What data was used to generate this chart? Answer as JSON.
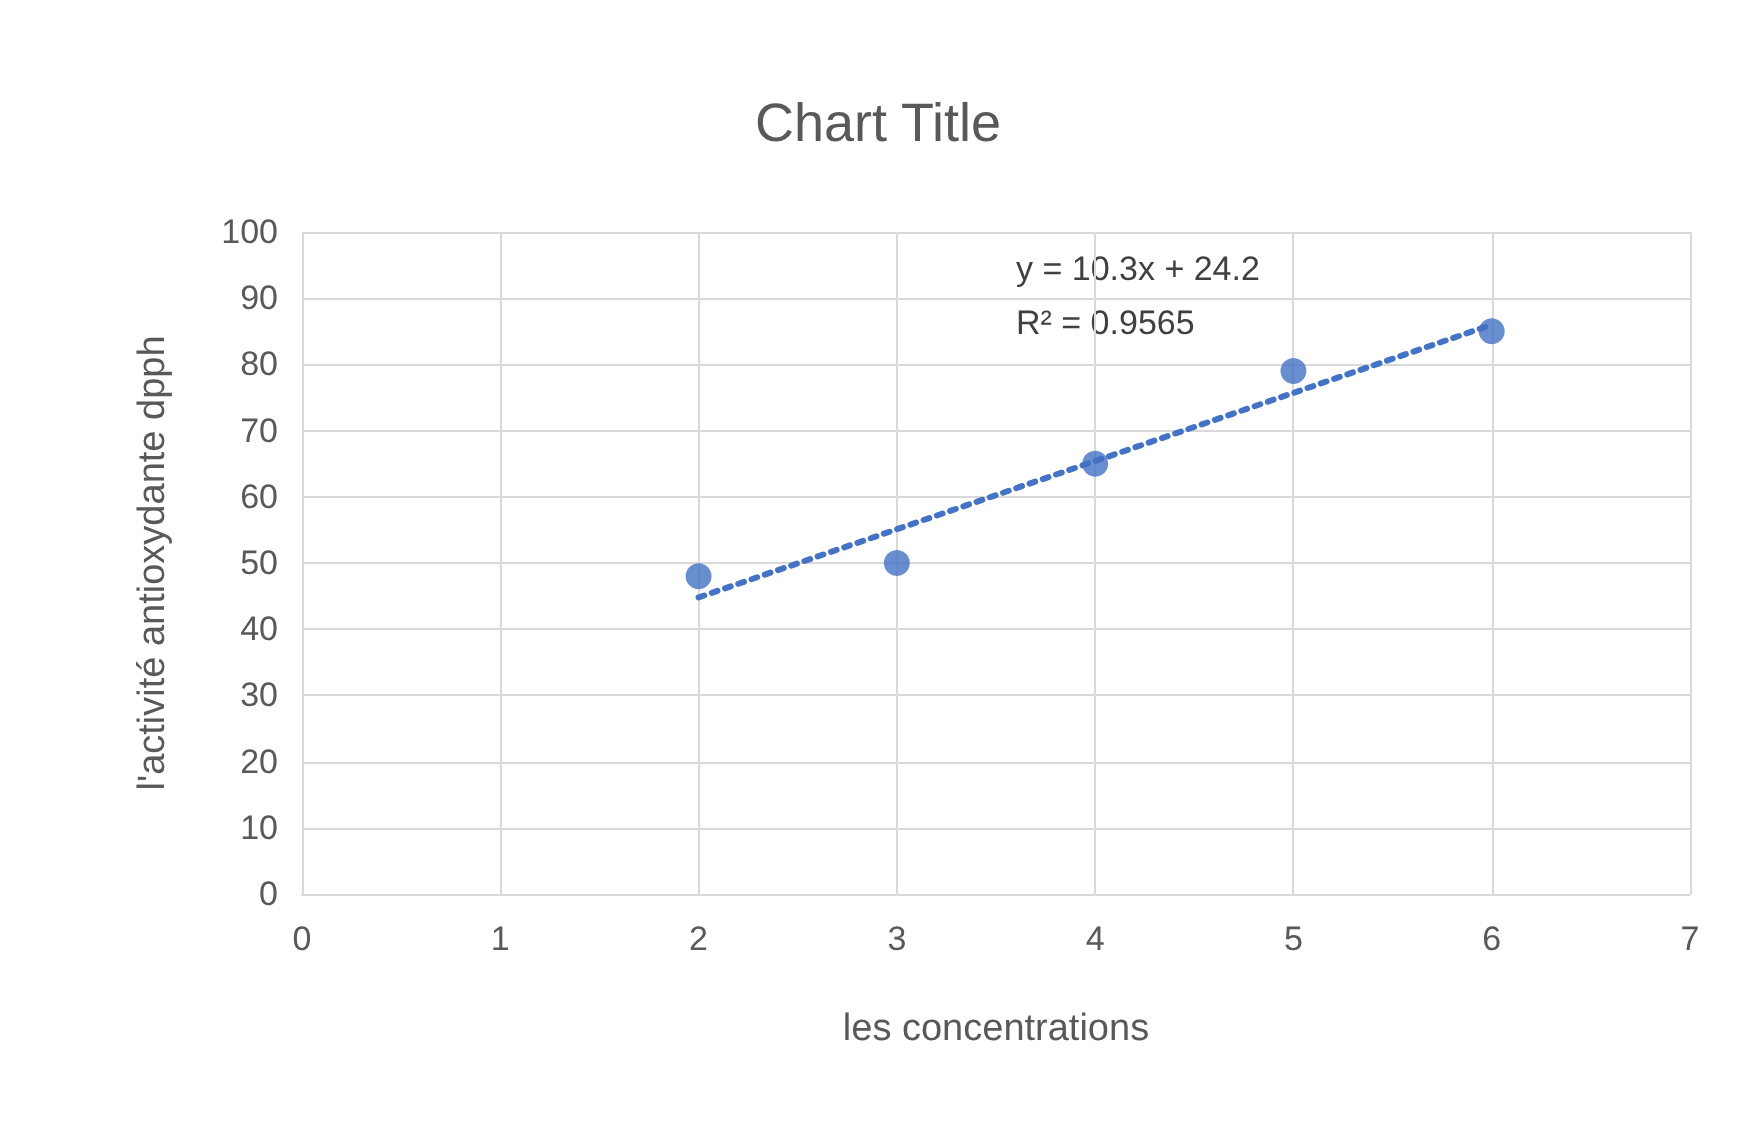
{
  "chart_data": {
    "type": "scatter",
    "title": "Chart Title",
    "xlabel": "les concentrations",
    "ylabel": "l'activité antioxydante dpph",
    "x": [
      2,
      3,
      4,
      5,
      6
    ],
    "series": [
      {
        "type": "scatter",
        "color": "#4472c4",
        "marker": "circle",
        "values": [
          48,
          50,
          65,
          79,
          85
        ]
      },
      {
        "type": "line",
        "color": "#4472c4",
        "marker": "none",
        "line_style": "dotted",
        "x": [
          2,
          6
        ],
        "values": [
          44.8,
          86
        ]
      }
    ],
    "xlim": [
      0,
      7
    ],
    "xticks": [
      0,
      1,
      2,
      3,
      4,
      5,
      6,
      7
    ],
    "ylim": [
      0,
      100
    ],
    "yticks": [
      0,
      10,
      20,
      30,
      40,
      50,
      60,
      70,
      80,
      90,
      100
    ],
    "grid": true,
    "annotations": [
      "y = 10.3x + 24.2",
      "R² = 0.9565"
    ]
  }
}
